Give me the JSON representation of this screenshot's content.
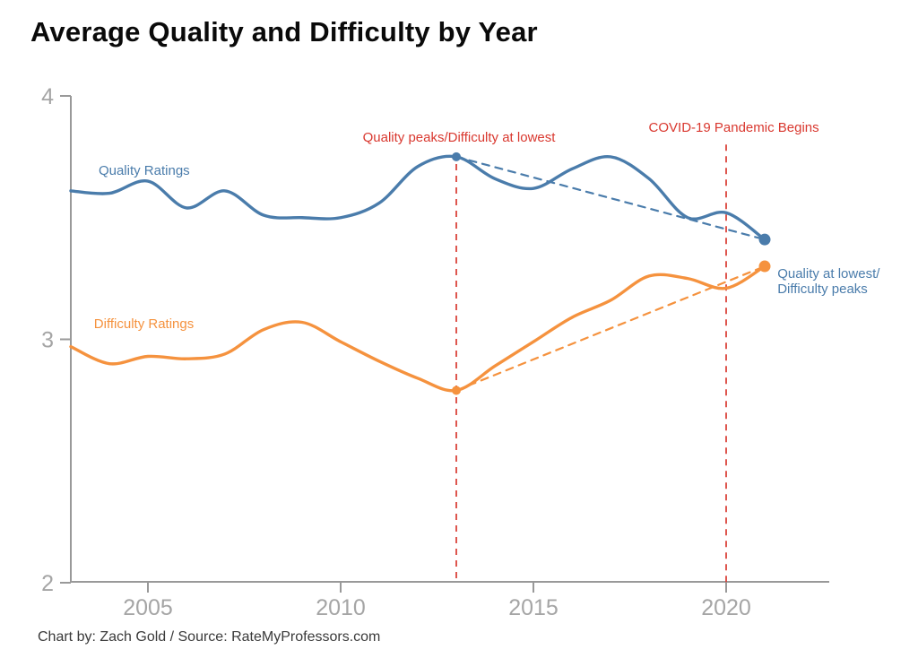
{
  "title": "Average Quality and Difficulty by Year",
  "caption": "Chart by: Zach Gold / Source: RateMyProfessors.com",
  "colors": {
    "quality": "#4a7cab",
    "difficulty": "#f5923e",
    "event": "#d9382f",
    "axis": "#999999",
    "axis_label": "#a5a5a5",
    "title": "#0a0a0a",
    "caption": "#3a3a3a"
  },
  "chart_data": {
    "type": "line",
    "title": "Average Quality and Difficulty by Year",
    "xlabel": "",
    "ylabel": "",
    "grid": false,
    "legend_position": "inline-labels",
    "xlim": [
      2003,
      2022.7
    ],
    "ylim": [
      2,
      4
    ],
    "x_ticks": [
      2005,
      2010,
      2015,
      2020
    ],
    "y_ticks": [
      4,
      3,
      2
    ],
    "x": [
      2003,
      2004,
      2005,
      2006,
      2007,
      2008,
      2009,
      2010,
      2011,
      2012,
      2013,
      2014,
      2015,
      2016,
      2017,
      2018,
      2019,
      2020,
      2021
    ],
    "series": [
      {
        "name": "Quality Ratings",
        "color_key": "quality",
        "values": [
          3.61,
          3.6,
          3.65,
          3.54,
          3.61,
          3.51,
          3.5,
          3.5,
          3.56,
          3.71,
          3.75,
          3.66,
          3.62,
          3.7,
          3.75,
          3.66,
          3.5,
          3.52,
          3.41
        ]
      },
      {
        "name": "Difficulty Ratings",
        "color_key": "difficulty",
        "values": [
          2.97,
          2.9,
          2.93,
          2.92,
          2.94,
          3.04,
          3.07,
          2.99,
          2.91,
          2.84,
          2.79,
          2.89,
          2.99,
          3.09,
          3.16,
          3.26,
          3.25,
          3.21,
          3.3
        ]
      }
    ],
    "events": [
      {
        "id": "event-2013",
        "year": 2013,
        "from_value": 3.72,
        "to_value": 2.0
      },
      {
        "id": "event-2020",
        "year": 2020,
        "from_value": 3.8,
        "to_value": 2.0
      }
    ],
    "trend_lines": [
      {
        "id": "quality-trend",
        "color_key": "quality",
        "from": {
          "year": 2013,
          "value": 3.75
        },
        "to": {
          "year": 2021,
          "value": 3.41
        }
      },
      {
        "id": "difficulty-trend",
        "color_key": "difficulty",
        "from": {
          "year": 2013,
          "value": 2.79
        },
        "to": {
          "year": 2021,
          "value": 3.3
        }
      }
    ],
    "markers": [
      {
        "id": "quality-2013-point",
        "color_key": "quality",
        "year": 2013,
        "value": 3.75,
        "r": 5
      },
      {
        "id": "quality-2021-point",
        "color_key": "quality",
        "year": 2021,
        "value": 3.41,
        "r": 6.5
      },
      {
        "id": "difficulty-2013-point",
        "color_key": "difficulty",
        "year": 2013,
        "value": 2.79,
        "r": 5
      },
      {
        "id": "difficulty-2021-point",
        "color_key": "difficulty",
        "year": 2021,
        "value": 3.3,
        "r": 6.5
      }
    ],
    "annotations": [
      {
        "id": "quality-ratings-label",
        "lines": [
          "Quality Ratings"
        ],
        "year": 2003.72,
        "value": 3.676,
        "anchor": "start",
        "color_key": "quality"
      },
      {
        "id": "difficulty-ratings-label",
        "lines": [
          "Difficulty Ratings"
        ],
        "year": 2003.6,
        "value": 3.046,
        "anchor": "start",
        "color_key": "difficulty"
      },
      {
        "id": "quality-peak-annotation",
        "lines": [
          "Quality peaks/Difficulty at lowest"
        ],
        "year": 2013.07,
        "value": 3.812,
        "anchor": "middle",
        "color_key": "event"
      },
      {
        "id": "covid-annotation",
        "lines": [
          "COVID-19 Pandemic Begins"
        ],
        "year": 2020.2,
        "value": 3.853,
        "anchor": "middle",
        "color_key": "event"
      },
      {
        "id": "quality-lowest-annotation",
        "lines": [
          "Quality at lowest/",
          "Difficulty peaks"
        ],
        "year": 2021.33,
        "value": 3.252,
        "anchor": "start",
        "color_key": "quality"
      }
    ]
  }
}
